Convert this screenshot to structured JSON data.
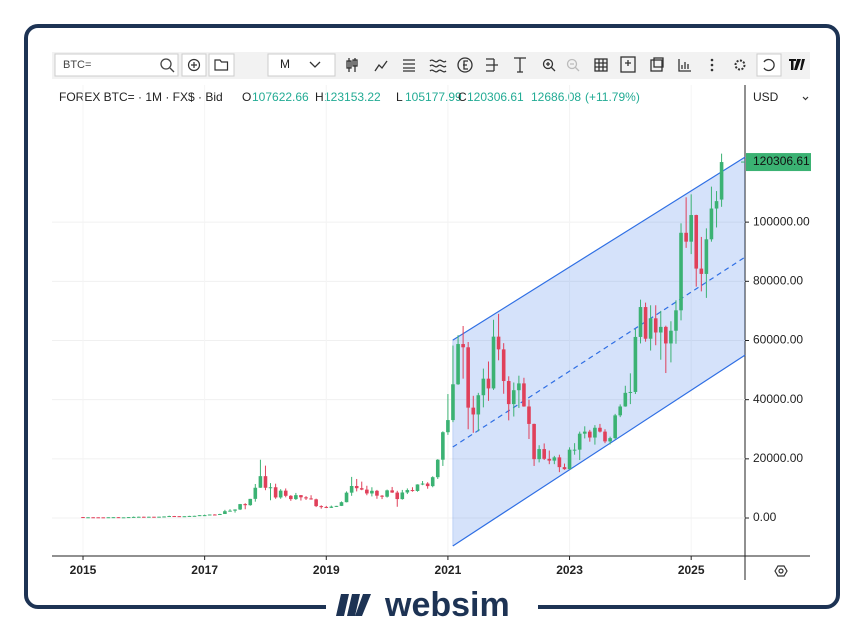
{
  "toolbar": {
    "symbol_input": "BTC=",
    "interval": "M"
  },
  "header": {
    "symbol_line": "FOREX BTC= · 1M · FX$ · Bid",
    "ohlc_labels": [
      "O",
      "H",
      "L",
      "C"
    ],
    "ohlc_values": [
      107622.66,
      123153.22,
      105177.99,
      120306.61
    ],
    "change": 12686.08,
    "change_pct_label": "(+11.79%)"
  },
  "currency": "USD",
  "branding": "websim",
  "chart_data": {
    "type": "candlestick",
    "up_color": "#3bb273",
    "down_color": "#e0405a",
    "grid": true,
    "xlim": [
      2014.49,
      2025.885
    ],
    "xticks": [
      2015,
      2017,
      2019,
      2021,
      2023,
      2025
    ],
    "ylim": [
      -12500,
      146350
    ],
    "yticks": [
      {
        "value": 0,
        "label": "0.00"
      },
      {
        "value": 20000,
        "label": "20000.00"
      },
      {
        "value": 40000,
        "label": "40000.00"
      },
      {
        "value": 60000,
        "label": "60000.00"
      },
      {
        "value": 80000,
        "label": "80000.00"
      },
      {
        "value": 100000,
        "label": "100000.00"
      }
    ],
    "last_price": 120306.61,
    "x": [
      2015,
      2015.083,
      2015.167,
      2015.25,
      2015.333,
      2015.417,
      2015.5,
      2015.583,
      2015.667,
      2015.75,
      2015.833,
      2015.917,
      2016,
      2016.083,
      2016.167,
      2016.25,
      2016.333,
      2016.417,
      2016.5,
      2016.583,
      2016.667,
      2016.75,
      2016.833,
      2016.917,
      2017,
      2017.083,
      2017.167,
      2017.25,
      2017.333,
      2017.417,
      2017.5,
      2017.583,
      2017.667,
      2017.75,
      2017.833,
      2017.917,
      2018,
      2018.083,
      2018.167,
      2018.25,
      2018.333,
      2018.417,
      2018.5,
      2018.583,
      2018.667,
      2018.75,
      2018.833,
      2018.917,
      2019,
      2019.083,
      2019.167,
      2019.25,
      2019.333,
      2019.417,
      2019.5,
      2019.583,
      2019.667,
      2019.75,
      2019.833,
      2019.917,
      2020,
      2020.083,
      2020.167,
      2020.25,
      2020.333,
      2020.417,
      2020.5,
      2020.583,
      2020.667,
      2020.75,
      2020.833,
      2020.917,
      2021,
      2021.083,
      2021.167,
      2021.25,
      2021.333,
      2021.417,
      2021.5,
      2021.583,
      2021.667,
      2021.75,
      2021.833,
      2021.917,
      2022,
      2022.083,
      2022.167,
      2022.25,
      2022.333,
      2022.417,
      2022.5,
      2022.583,
      2022.667,
      2022.75,
      2022.833,
      2022.917,
      2023,
      2023.083,
      2023.167,
      2023.25,
      2023.333,
      2023.417,
      2023.5,
      2023.583,
      2023.667,
      2023.75,
      2023.833,
      2023.917,
      2024,
      2024.083,
      2024.167,
      2024.25,
      2024.333,
      2024.417,
      2024.5,
      2024.583,
      2024.667,
      2024.75,
      2024.833,
      2024.917,
      2025,
      2025.083,
      2025.167,
      2025.25,
      2025.333,
      2025.417,
      2025.5
    ],
    "open": [
      320,
      220,
      255,
      245,
      235,
      230,
      265,
      285,
      230,
      235,
      315,
      375,
      430,
      370,
      435,
      415,
      450,
      530,
      670,
      625,
      575,
      610,
      700,
      745,
      965,
      970,
      1190,
      1080,
      1350,
      2300,
      2480,
      2880,
      4700,
      4340,
      6470,
      10230,
      14150,
      10220,
      10400,
      6950,
      9250,
      7500,
      6400,
      7730,
      7000,
      6620,
      6320,
      4020,
      3740,
      3440,
      3850,
      4100,
      5350,
      8570,
      10820,
      10080,
      9600,
      8300,
      9200,
      7550,
      7200,
      9350,
      8600,
      6400,
      8630,
      9450,
      9140,
      11350,
      11650,
      10780,
      13800,
      19700,
      29000,
      33100,
      45200,
      58800,
      57700,
      37300,
      35000,
      41500,
      47100,
      43800,
      61300,
      57000,
      46300,
      38500,
      43200,
      45500,
      37700,
      31800,
      19900,
      23300,
      20000,
      19400,
      20500,
      17200,
      16500,
      23100,
      23100,
      28500,
      29200,
      27200,
      30500,
      29200,
      25900,
      27000,
      34700,
      37700,
      42300,
      42600,
      61200,
      71300,
      60600,
      67500,
      62700,
      64600,
      59000,
      63300,
      70200,
      96400,
      93400,
      102400,
      84300,
      82500,
      94200,
      104600,
      107622.66
    ],
    "high": [
      320,
      265,
      300,
      260,
      245,
      265,
      315,
      285,
      245,
      335,
      500,
      465,
      460,
      445,
      440,
      470,
      550,
      780,
      700,
      620,
      615,
      740,
      755,
      975,
      1150,
      1210,
      1290,
      1430,
      2760,
      2980,
      2950,
      4760,
      5000,
      6470,
      11500,
      19700,
      17700,
      11800,
      11600,
      9750,
      9990,
      7750,
      8480,
      7760,
      7400,
      7700,
      6550,
      4300,
      4100,
      4200,
      4100,
      5600,
      9000,
      13900,
      13200,
      12300,
      10900,
      10400,
      9500,
      7750,
      9600,
      10500,
      9200,
      9500,
      10000,
      10400,
      11400,
      12500,
      12100,
      14100,
      19900,
      29300,
      41900,
      58300,
      61800,
      64900,
      59500,
      41300,
      42300,
      50500,
      52900,
      67000,
      69000,
      59100,
      47900,
      45800,
      48100,
      47400,
      40000,
      31900,
      24600,
      25200,
      22800,
      21000,
      21400,
      18400,
      23900,
      25300,
      29200,
      31000,
      29800,
      31400,
      31800,
      30000,
      27500,
      35200,
      38400,
      44700,
      48900,
      63900,
      73800,
      72800,
      71900,
      71900,
      70000,
      65000,
      66500,
      73600,
      99600,
      108400,
      109400,
      102500,
      95000,
      97900,
      112000,
      110500,
      123153.22
    ],
    "low": [
      170,
      210,
      235,
      215,
      225,
      220,
      255,
      200,
      225,
      235,
      305,
      345,
      350,
      365,
      405,
      415,
      440,
      525,
      605,
      540,
      570,
      605,
      690,
      745,
      750,
      940,
      890,
      1060,
      1360,
      2350,
      1830,
      2700,
      2970,
      4150,
      5520,
      10200,
      9400,
      6000,
      6500,
      6500,
      7000,
      5800,
      6100,
      5900,
      6100,
      6200,
      3700,
      3150,
      3350,
      3380,
      3730,
      4050,
      5300,
      7500,
      9000,
      9400,
      7700,
      7300,
      6500,
      6400,
      6900,
      8500,
      3800,
      6200,
      8100,
      8900,
      8900,
      11100,
      9900,
      10400,
      13200,
      17600,
      28100,
      32400,
      45000,
      47100,
      30000,
      28800,
      29300,
      37400,
      39600,
      43300,
      53300,
      42000,
      33000,
      34300,
      37200,
      37600,
      26700,
      17600,
      18800,
      19600,
      18200,
      18200,
      15500,
      16300,
      16500,
      21400,
      19600,
      26900,
      25800,
      24800,
      28900,
      25300,
      24900,
      26600,
      34100,
      37600,
      38500,
      41900,
      59000,
      59600,
      56600,
      58400,
      53500,
      49000,
      52600,
      58900,
      66800,
      91300,
      89200,
      78200,
      76600,
      74400,
      93400,
      98200,
      105177.99
    ],
    "close": [
      220,
      255,
      245,
      235,
      230,
      265,
      285,
      230,
      235,
      315,
      375,
      430,
      370,
      435,
      415,
      450,
      530,
      670,
      625,
      575,
      610,
      700,
      745,
      965,
      970,
      1190,
      1080,
      1350,
      2300,
      2480,
      2880,
      4700,
      4340,
      6470,
      10230,
      14150,
      10220,
      10400,
      6950,
      9250,
      7500,
      6400,
      7730,
      7000,
      6620,
      6320,
      4020,
      3740,
      3440,
      3850,
      4100,
      5350,
      8570,
      10820,
      10080,
      9600,
      8300,
      9200,
      7550,
      7200,
      9350,
      8600,
      6400,
      8630,
      9450,
      9140,
      11350,
      11650,
      10780,
      13800,
      19700,
      29000,
      33100,
      45200,
      58800,
      57700,
      37300,
      35000,
      41500,
      47100,
      43800,
      61300,
      57000,
      46300,
      38500,
      43200,
      45500,
      37700,
      31800,
      19900,
      23300,
      20000,
      19400,
      20500,
      17200,
      16500,
      23100,
      23100,
      28500,
      29200,
      27200,
      30500,
      29200,
      25900,
      27000,
      34700,
      37700,
      42300,
      42600,
      61200,
      71300,
      60600,
      67500,
      62700,
      64600,
      59000,
      63300,
      70200,
      96400,
      93400,
      102400,
      84300,
      82500,
      94200,
      104600,
      107100,
      120306.61
    ],
    "channel": {
      "x": [
        2021.08,
        2025.885
      ],
      "upper": [
        60135,
        121960
      ],
      "middle": [
        23986,
        88176
      ],
      "lower": [
        -9460,
        55070
      ],
      "color": "#2f6fe4",
      "fill": "rgba(47,111,228,0.2)"
    }
  }
}
